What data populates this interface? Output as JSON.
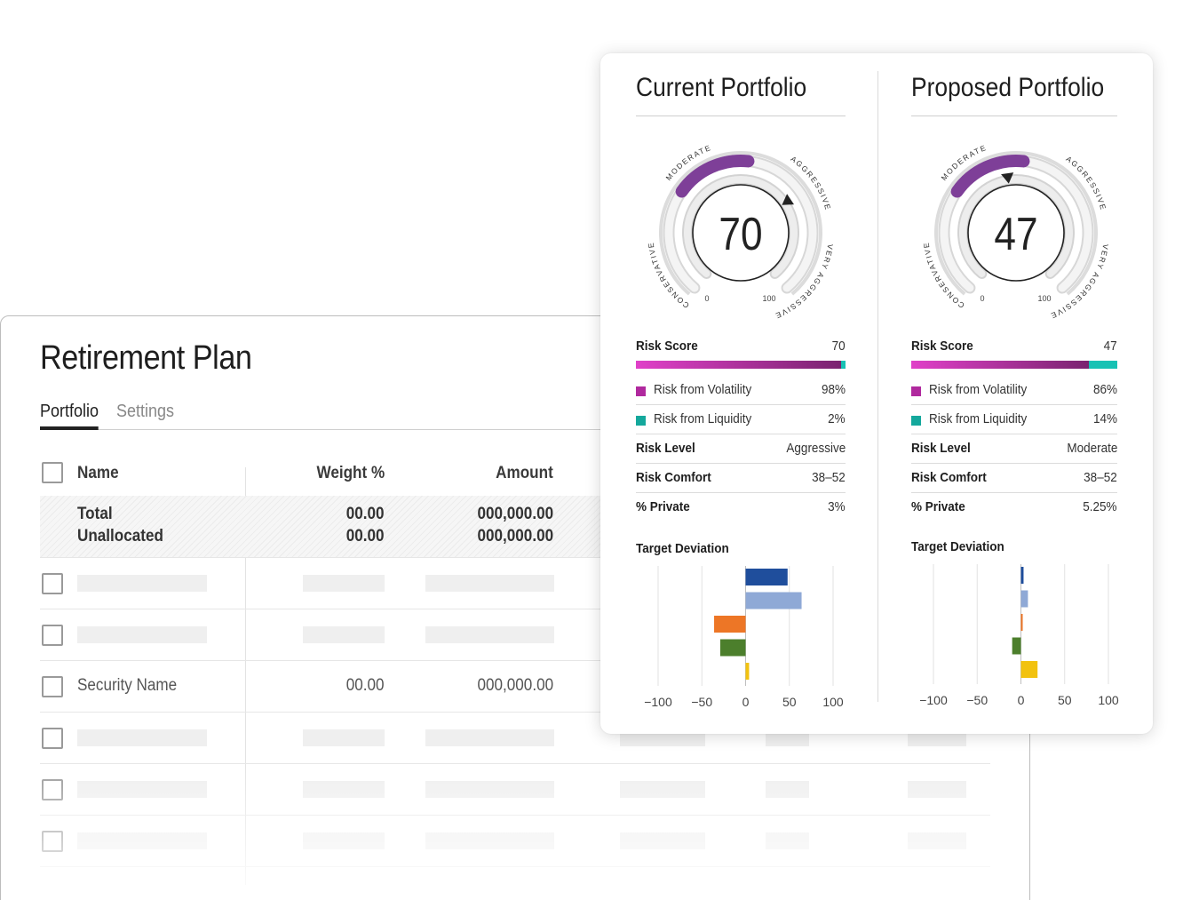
{
  "plan": {
    "title": "Retirement Plan",
    "tabs": [
      {
        "label": "Portfolio",
        "active": true
      },
      {
        "label": "Settings",
        "active": false
      }
    ],
    "columns": {
      "name": "Name",
      "weight": "Weight %",
      "amount": "Amount"
    },
    "total_row": {
      "name_line1": "Total",
      "name_line2": "Unallocated",
      "weight_line1": "00.00",
      "weight_line2": "00.00",
      "amount_line1": "000,000.00",
      "amount_line2": "000,000.00"
    },
    "security_row": {
      "name": "Security Name",
      "weight": "00.00",
      "amount": "000,000.00"
    }
  },
  "current": {
    "title": "Current Portfolio",
    "gauge": {
      "score": "70",
      "score_value": 70,
      "scale_min": "0",
      "scale_max": "100",
      "zones": [
        "CONSERVATIVE",
        "MODERATE",
        "AGGRESSIVE",
        "VERY AGGRESSIVE"
      ],
      "highlighted_zone": "MODERATE"
    },
    "risk_score_label": "Risk Score",
    "risk_score_value": "70",
    "volatility_label": "Risk from Volatility",
    "volatility_value": "98%",
    "volatility_fraction": 0.98,
    "liquidity_label": "Risk from Liquidity",
    "liquidity_value": "2%",
    "risk_level_label": "Risk Level",
    "risk_level_value": "Aggressive",
    "risk_comfort_label": "Risk Comfort",
    "risk_comfort_value": "38–52",
    "private_label": "% Private",
    "private_value": "3%",
    "target_deviation_label": "Target Deviation"
  },
  "proposed": {
    "title": "Proposed Portfolio",
    "gauge": {
      "score": "47",
      "score_value": 47,
      "scale_min": "0",
      "scale_max": "100",
      "zones": [
        "CONSERVATIVE",
        "MODERATE",
        "AGGRESSIVE",
        "VERY AGGRESSIVE"
      ],
      "highlighted_zone": "MODERATE"
    },
    "risk_score_label": "Risk Score",
    "risk_score_value": "47",
    "volatility_label": "Risk from Volatility",
    "volatility_value": "86%",
    "volatility_fraction": 0.86,
    "liquidity_label": "Risk from Liquidity",
    "liquidity_value": "14%",
    "risk_level_label": "Risk Level",
    "risk_level_value": "Moderate",
    "risk_comfort_label": "Risk Comfort",
    "risk_comfort_value": "38–52",
    "private_label": "% Private",
    "private_value": "5.25%",
    "target_deviation_label": "Target Deviation"
  },
  "colors": {
    "volatility_start": "#e040c8",
    "volatility_end": "#7a2470",
    "liquidity": "#17c2b4",
    "volatility_swatch": "#b0299e",
    "liquidity_swatch": "#14a89c",
    "gauge_highlight": "#7e3f98"
  },
  "chart_data": [
    {
      "type": "bar",
      "orientation": "horizontal",
      "title": "Target Deviation",
      "xlim": [
        -100,
        100
      ],
      "xticks": [
        "−100",
        "−50",
        "0",
        "50",
        "100"
      ],
      "xtick_values": [
        -100,
        -50,
        0,
        50,
        100
      ],
      "values": [
        48,
        64,
        -36,
        -29,
        4
      ],
      "colors": [
        "#1f4e9c",
        "#8fa9d6",
        "#ed7626",
        "#4c7f2c",
        "#f2c20f"
      ]
    },
    {
      "type": "bar",
      "orientation": "horizontal",
      "title": "Target Deviation",
      "xlim": [
        -100,
        100
      ],
      "xticks": [
        "−100",
        "−50",
        "0",
        "50",
        "100"
      ],
      "xtick_values": [
        -100,
        -50,
        0,
        50,
        100
      ],
      "values": [
        3,
        8,
        2,
        -10,
        19
      ],
      "colors": [
        "#1f4e9c",
        "#8fa9d6",
        "#ed7626",
        "#4c7f2c",
        "#f2c20f"
      ]
    }
  ]
}
